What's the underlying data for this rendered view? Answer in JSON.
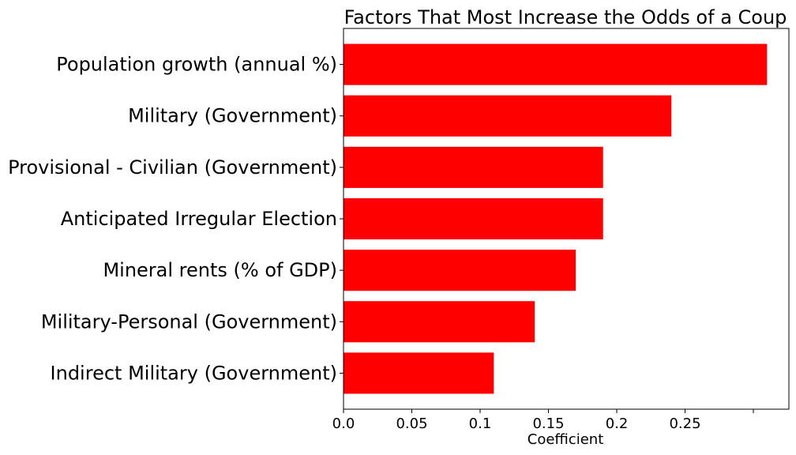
{
  "chart_data": {
    "type": "bar",
    "orientation": "horizontal",
    "title": "Factors That Most Increase the Odds of a Coup",
    "xlabel": "Coefficient",
    "ylabel": "",
    "categories": [
      "Population growth (annual %)",
      "Military (Government)",
      "Provisional - Civilian (Government)",
      "Anticipated Irregular Election",
      "Mineral rents (% of GDP)",
      "Military-Personal (Government)",
      "Indirect Military (Government)"
    ],
    "values": [
      0.31,
      0.24,
      0.19,
      0.19,
      0.17,
      0.14,
      0.11
    ],
    "xlim": [
      0,
      0.326
    ],
    "xticks": [
      {
        "value": 0.0,
        "label": "0.0"
      },
      {
        "value": 0.05,
        "label": "0.05"
      },
      {
        "value": 0.1,
        "label": "0.1"
      },
      {
        "value": 0.15,
        "label": "0.15"
      },
      {
        "value": 0.2,
        "label": "0.2"
      },
      {
        "value": 0.25,
        "label": "0.25"
      },
      {
        "value": 0.3,
        "label": ""
      }
    ],
    "bar_color": "#ff0000",
    "grid": false,
    "legend": false
  }
}
